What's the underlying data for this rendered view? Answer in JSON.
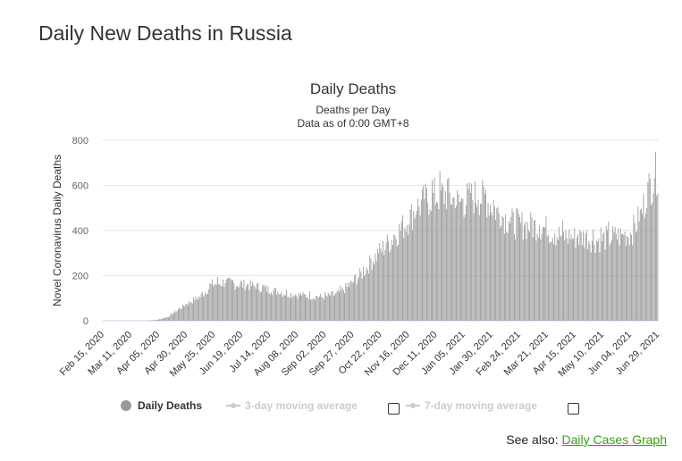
{
  "page": {
    "heading": "Daily New Deaths in Russia",
    "see_also_label": "See also:",
    "see_also_link": "Daily Cases Graph"
  },
  "colors": {
    "bar": "#999999",
    "grid": "#e6e6e6",
    "legend_inactive": "#cccccc",
    "link": "#3a9b1e"
  },
  "chart_data": {
    "type": "bar",
    "title": "Daily Deaths",
    "subtitle_lines": [
      "Deaths per Day",
      "Data as of 0:00 GMT+8"
    ],
    "ylabel": "Novel Coronavirus Daily Deaths",
    "xlabel": "",
    "ylim": [
      0,
      800
    ],
    "yticks": [
      0,
      200,
      400,
      600,
      800
    ],
    "grid": true,
    "x_start": "2020-02-15",
    "x_end": "2021-07-06",
    "xtick_labels": [
      "Feb 15, 2020",
      "Mar 11, 2020",
      "Apr 05, 2020",
      "Apr 30, 2020",
      "May 25, 2020",
      "Jun 19, 2020",
      "Jul 14, 2020",
      "Aug 08, 2020",
      "Sep 02, 2020",
      "Sep 27, 2020",
      "Oct 22, 2020",
      "Nov 16, 2020",
      "Dec 11, 2020",
      "Jan 05, 2021",
      "Jan 30, 2021",
      "Feb 24, 2021",
      "Mar 21, 2021",
      "Apr 15, 2021",
      "May 10, 2021",
      "Jun 04, 2021",
      "Jun 29, 2021"
    ],
    "series_name": "Daily Deaths",
    "trend_points": [
      [
        "2020-02-15",
        0
      ],
      [
        "2020-03-25",
        0
      ],
      [
        "2020-04-05",
        4
      ],
      [
        "2020-04-15",
        18
      ],
      [
        "2020-04-30",
        70
      ],
      [
        "2020-05-15",
        110
      ],
      [
        "2020-05-25",
        160
      ],
      [
        "2020-06-05",
        170
      ],
      [
        "2020-06-19",
        160
      ],
      [
        "2020-07-01",
        155
      ],
      [
        "2020-07-14",
        140
      ],
      [
        "2020-08-01",
        120
      ],
      [
        "2020-08-20",
        110
      ],
      [
        "2020-09-02",
        105
      ],
      [
        "2020-09-15",
        115
      ],
      [
        "2020-09-27",
        155
      ],
      [
        "2020-10-10",
        215
      ],
      [
        "2020-10-22",
        290
      ],
      [
        "2020-11-05",
        360
      ],
      [
        "2020-11-16",
        420
      ],
      [
        "2020-11-28",
        500
      ],
      [
        "2020-12-11",
        550
      ],
      [
        "2020-12-25",
        560
      ],
      [
        "2021-01-05",
        520
      ],
      [
        "2021-01-20",
        550
      ],
      [
        "2021-01-30",
        540
      ],
      [
        "2021-02-10",
        480
      ],
      [
        "2021-02-24",
        430
      ],
      [
        "2021-03-10",
        420
      ],
      [
        "2021-03-21",
        420
      ],
      [
        "2021-04-05",
        380
      ],
      [
        "2021-04-15",
        370
      ],
      [
        "2021-05-01",
        370
      ],
      [
        "2021-05-10",
        355
      ],
      [
        "2021-05-25",
        370
      ],
      [
        "2021-06-04",
        375
      ],
      [
        "2021-06-12",
        390
      ],
      [
        "2021-06-20",
        460
      ],
      [
        "2021-06-29",
        600
      ],
      [
        "2021-07-06",
        665
      ]
    ],
    "legend": [
      {
        "label": "Daily Deaths",
        "active": true
      },
      {
        "label": "3-day moving average",
        "active": false
      },
      {
        "label": "7-day moving average",
        "active": false
      }
    ],
    "legend_placement": "bottom"
  }
}
